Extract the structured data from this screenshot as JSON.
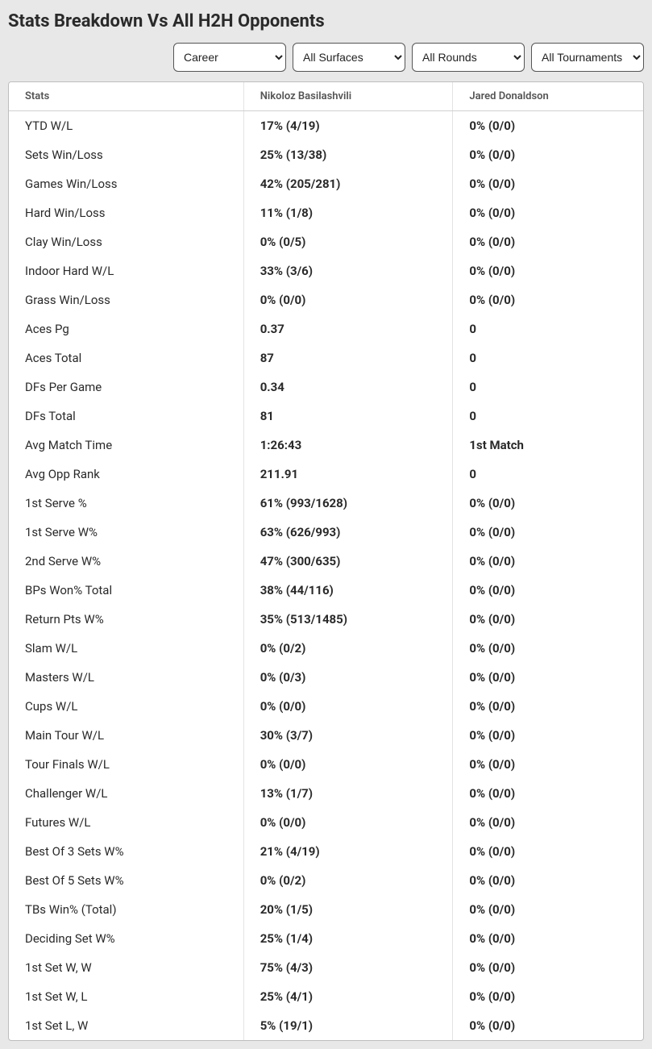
{
  "title": "Stats Breakdown Vs All H2H Opponents",
  "filters": {
    "period": "Career",
    "surface": "All Surfaces",
    "round": "All Rounds",
    "tournament": "All Tournaments"
  },
  "table": {
    "headers": {
      "stats": "Stats",
      "player1": "Nikoloz Basilashvili",
      "player2": "Jared Donaldson"
    },
    "rows": [
      {
        "label": "YTD W/L",
        "p1": "17% (4/19)",
        "p2": "0% (0/0)"
      },
      {
        "label": "Sets Win/Loss",
        "p1": "25% (13/38)",
        "p2": "0% (0/0)"
      },
      {
        "label": "Games Win/Loss",
        "p1": "42% (205/281)",
        "p2": "0% (0/0)"
      },
      {
        "label": "Hard Win/Loss",
        "p1": "11% (1/8)",
        "p2": "0% (0/0)"
      },
      {
        "label": "Clay Win/Loss",
        "p1": "0% (0/5)",
        "p2": "0% (0/0)"
      },
      {
        "label": "Indoor Hard W/L",
        "p1": "33% (3/6)",
        "p2": "0% (0/0)"
      },
      {
        "label": "Grass Win/Loss",
        "p1": "0% (0/0)",
        "p2": "0% (0/0)"
      },
      {
        "label": "Aces Pg",
        "p1": "0.37",
        "p2": "0"
      },
      {
        "label": "Aces Total",
        "p1": "87",
        "p2": "0"
      },
      {
        "label": "DFs Per Game",
        "p1": "0.34",
        "p2": "0"
      },
      {
        "label": "DFs Total",
        "p1": "81",
        "p2": "0"
      },
      {
        "label": "Avg Match Time",
        "p1": "1:26:43",
        "p2": "1st Match"
      },
      {
        "label": "Avg Opp Rank",
        "p1": "211.91",
        "p2": "0"
      },
      {
        "label": "1st Serve %",
        "p1": "61% (993/1628)",
        "p2": "0% (0/0)"
      },
      {
        "label": "1st Serve W%",
        "p1": "63% (626/993)",
        "p2": "0% (0/0)"
      },
      {
        "label": "2nd Serve W%",
        "p1": "47% (300/635)",
        "p2": "0% (0/0)"
      },
      {
        "label": "BPs Won% Total",
        "p1": "38% (44/116)",
        "p2": "0% (0/0)"
      },
      {
        "label": "Return Pts W%",
        "p1": "35% (513/1485)",
        "p2": "0% (0/0)"
      },
      {
        "label": "Slam W/L",
        "p1": "0% (0/2)",
        "p2": "0% (0/0)"
      },
      {
        "label": "Masters W/L",
        "p1": "0% (0/3)",
        "p2": "0% (0/0)"
      },
      {
        "label": "Cups W/L",
        "p1": "0% (0/0)",
        "p2": "0% (0/0)"
      },
      {
        "label": "Main Tour W/L",
        "p1": "30% (3/7)",
        "p2": "0% (0/0)"
      },
      {
        "label": "Tour Finals W/L",
        "p1": "0% (0/0)",
        "p2": "0% (0/0)"
      },
      {
        "label": "Challenger W/L",
        "p1": "13% (1/7)",
        "p2": "0% (0/0)"
      },
      {
        "label": "Futures W/L",
        "p1": "0% (0/0)",
        "p2": "0% (0/0)"
      },
      {
        "label": "Best Of 3 Sets W%",
        "p1": "21% (4/19)",
        "p2": "0% (0/0)"
      },
      {
        "label": "Best Of 5 Sets W%",
        "p1": "0% (0/2)",
        "p2": "0% (0/0)"
      },
      {
        "label": "TBs Win% (Total)",
        "p1": "20% (1/5)",
        "p2": "0% (0/0)"
      },
      {
        "label": "Deciding Set W%",
        "p1": "25% (1/4)",
        "p2": "0% (0/0)"
      },
      {
        "label": "1st Set W, W",
        "p1": "75% (4/3)",
        "p2": "0% (0/0)"
      },
      {
        "label": "1st Set W, L",
        "p1": "25% (4/1)",
        "p2": "0% (0/0)"
      },
      {
        "label": "1st Set L, W",
        "p1": "5% (19/1)",
        "p2": "0% (0/0)"
      }
    ]
  }
}
